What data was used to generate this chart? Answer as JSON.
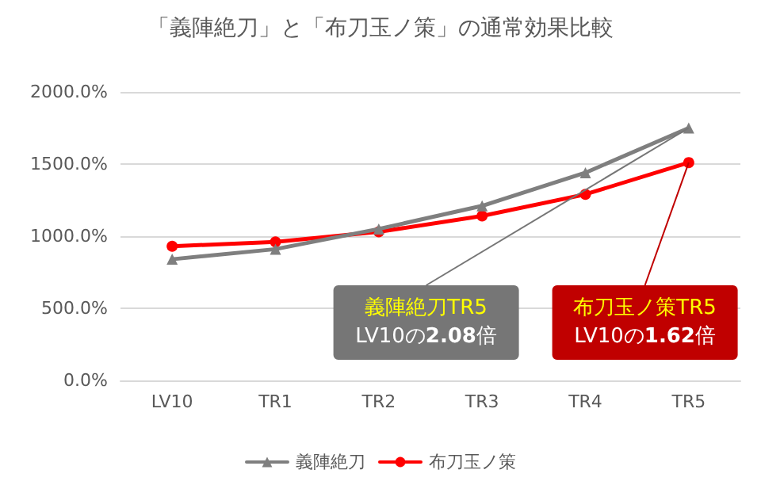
{
  "chart_data": {
    "type": "line",
    "title": "「義陣絶刀」と「布刀玉ノ策」の通常効果比較",
    "categories": [
      "LV10",
      "TR1",
      "TR2",
      "TR3",
      "TR4",
      "TR5"
    ],
    "series": [
      {
        "name": "義陣絶刀",
        "color": "#7f7f7f",
        "marker": "triangle",
        "values": [
          840,
          910,
          1050,
          1210,
          1440,
          1750
        ]
      },
      {
        "name": "布刀玉ノ策",
        "color": "#ff0000",
        "marker": "circle",
        "values": [
          930,
          960,
          1030,
          1140,
          1290,
          1510
        ]
      }
    ],
    "ylim": [
      0,
      2000
    ],
    "yticks": [
      {
        "value": 0,
        "label": "0.0%"
      },
      {
        "value": 500,
        "label": "500.0%"
      },
      {
        "value": 1000,
        "label": "1000.0%"
      },
      {
        "value": 1500,
        "label": "1500.0%"
      },
      {
        "value": 2000,
        "label": "2000.0%"
      }
    ],
    "grid": "y",
    "legend": "bottom",
    "line_style": "solid",
    "annotations": [
      {
        "text": "義陣絶刀TR5\nLV10の2.08倍",
        "x": "TR5",
        "y": 1750
      },
      {
        "text": "布刀玉ノ策TR5\nLV10の1.62倍",
        "x": "TR5",
        "y": 1510
      }
    ]
  }
}
